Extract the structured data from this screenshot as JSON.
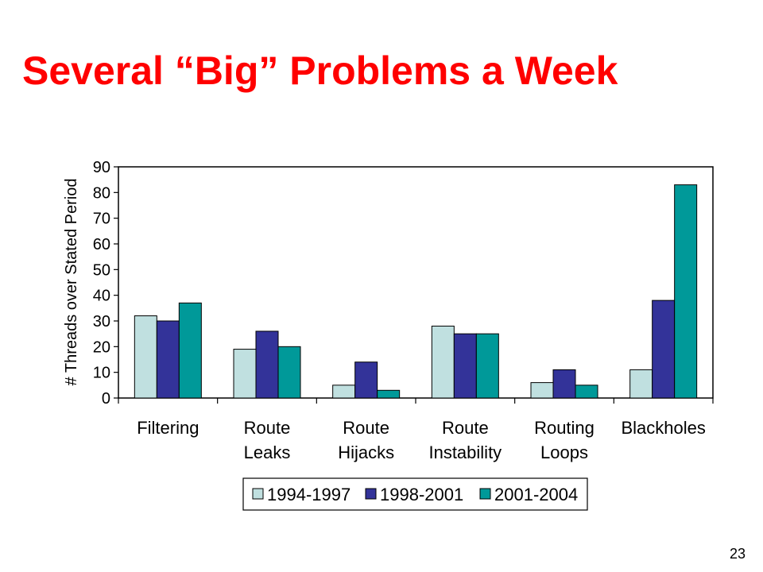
{
  "slide": {
    "title": "Several “Big” Problems a Week",
    "page_number": "23"
  },
  "chart_data": {
    "type": "bar",
    "title": "",
    "xlabel": "",
    "ylabel": "# Threads over Stated Period",
    "ylim": [
      0,
      90
    ],
    "yticks": [
      0,
      10,
      20,
      30,
      40,
      50,
      60,
      70,
      80,
      90
    ],
    "categories": [
      [
        "Filtering"
      ],
      [
        "Route",
        "Leaks"
      ],
      [
        "Route",
        "Hijacks"
      ],
      [
        "Route",
        "Instability"
      ],
      [
        "Routing",
        "Loops"
      ],
      [
        "Blackholes"
      ]
    ],
    "series": [
      {
        "name": "1994-1997",
        "color": "#c0e0e0",
        "values": [
          32,
          19,
          5,
          28,
          6,
          11
        ]
      },
      {
        "name": "1998-2001",
        "color": "#333399",
        "values": [
          30,
          26,
          14,
          25,
          11,
          38
        ]
      },
      {
        "name": "2001-2004",
        "color": "#009999",
        "values": [
          37,
          20,
          3,
          25,
          5,
          83
        ]
      }
    ],
    "grid": false,
    "legend_position": "bottom"
  }
}
